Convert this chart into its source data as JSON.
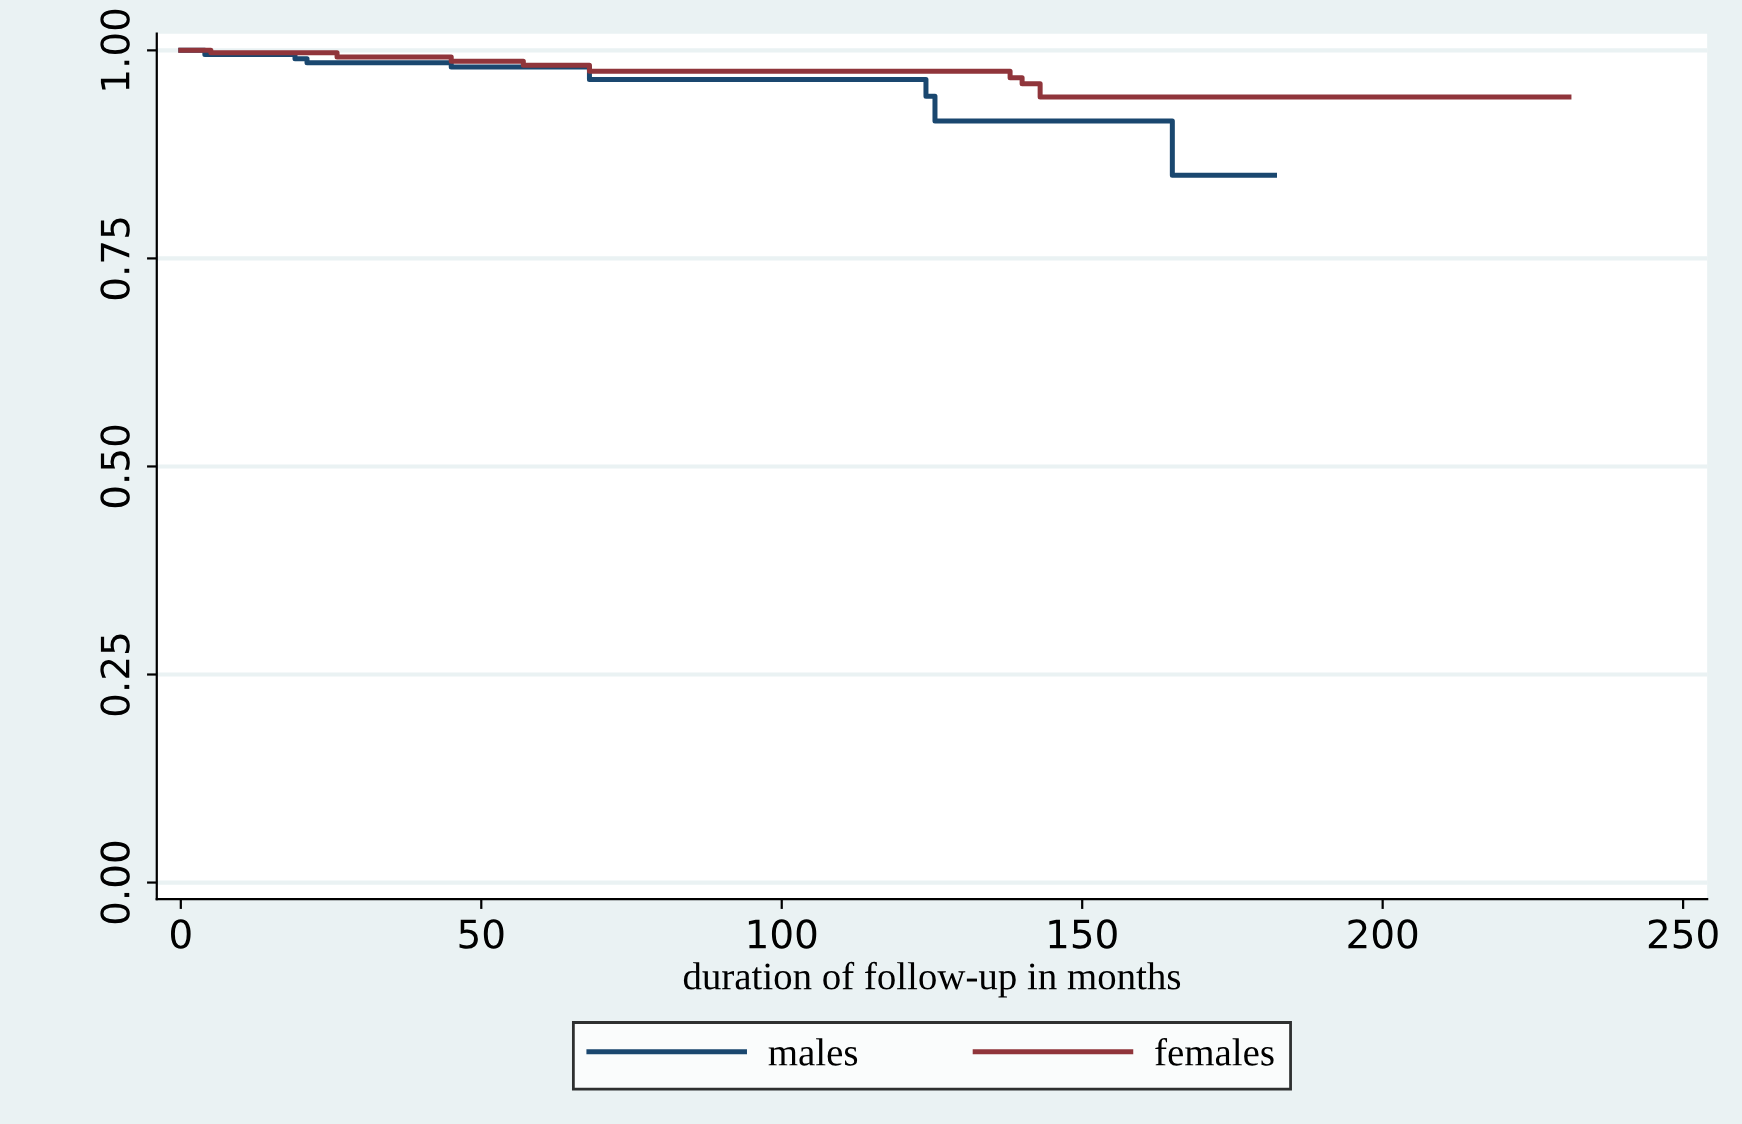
{
  "chart_data": {
    "type": "step",
    "xlabel": "duration of follow-up in months",
    "xlim": [
      -4,
      254
    ],
    "xticks": [
      0,
      50,
      100,
      150,
      200,
      250
    ],
    "ylim": [
      -0.02,
      1.02
    ],
    "yticks": [
      {
        "value": 0,
        "label": "0.00"
      },
      {
        "value": 0.25,
        "label": "0.25"
      },
      {
        "value": 0.5,
        "label": "0.50"
      },
      {
        "value": 0.75,
        "label": "0.75"
      },
      {
        "value": 1,
        "label": "1.00"
      }
    ],
    "grid": "y",
    "legend": "bottom",
    "series": [
      {
        "name": "males",
        "color": "#1a476f",
        "x": [
          0,
          4,
          19,
          21,
          45,
          68,
          124,
          125.5,
          165,
          182
        ],
        "values": [
          1,
          0.995,
          0.99,
          0.985,
          0.98,
          0.965,
          0.945,
          0.915,
          0.85,
          0.85
        ]
      },
      {
        "name": "females",
        "color": "#90353b",
        "x": [
          0,
          5,
          26,
          45,
          57,
          68,
          138,
          140,
          143,
          231
        ],
        "values": [
          1,
          0.997,
          0.992,
          0.987,
          0.982,
          0.975,
          0.967,
          0.96,
          0.944,
          0.944
        ]
      }
    ]
  }
}
